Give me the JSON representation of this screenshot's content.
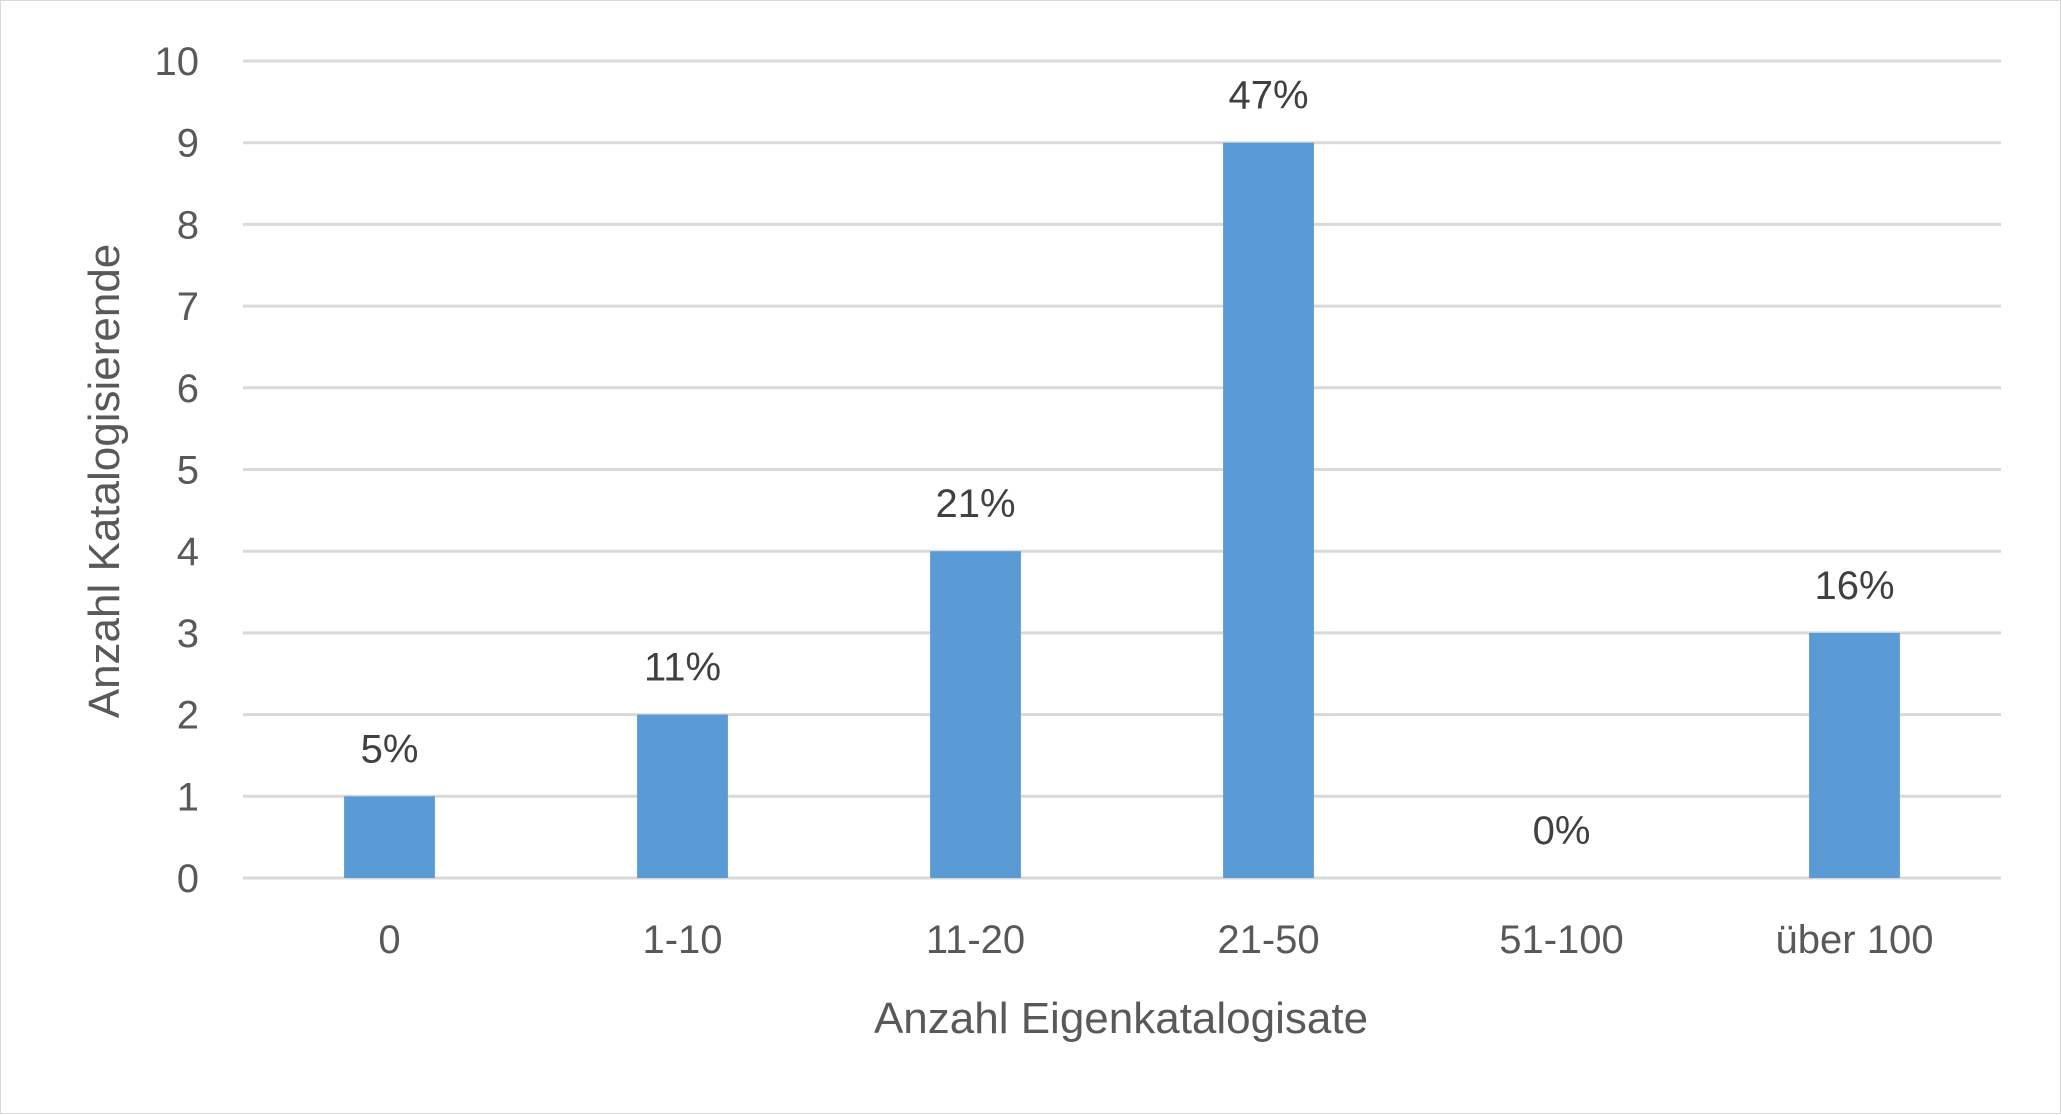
{
  "chart_data": {
    "type": "bar",
    "categories": [
      "0",
      "1-10",
      "11-20",
      "21-50",
      "51-100",
      "über 100"
    ],
    "values": [
      1,
      2,
      4,
      9,
      0,
      3
    ],
    "data_labels": [
      "5%",
      "11%",
      "21%",
      "47%",
      "0%",
      "16%"
    ],
    "y_ticks": [
      "0",
      "1",
      "2",
      "3",
      "4",
      "5",
      "6",
      "7",
      "8",
      "9",
      "10"
    ],
    "xlabel": "Anzahl Eigenkatalogisate",
    "ylabel": "Anzahl Katalogisierende",
    "ylim": [
      0,
      10
    ],
    "grid": true,
    "legend": "none",
    "colors": {
      "bar": "#5b9bd5",
      "grid": "#d9d9d9",
      "tick_text": "#595959",
      "label_text": "#404040"
    }
  }
}
